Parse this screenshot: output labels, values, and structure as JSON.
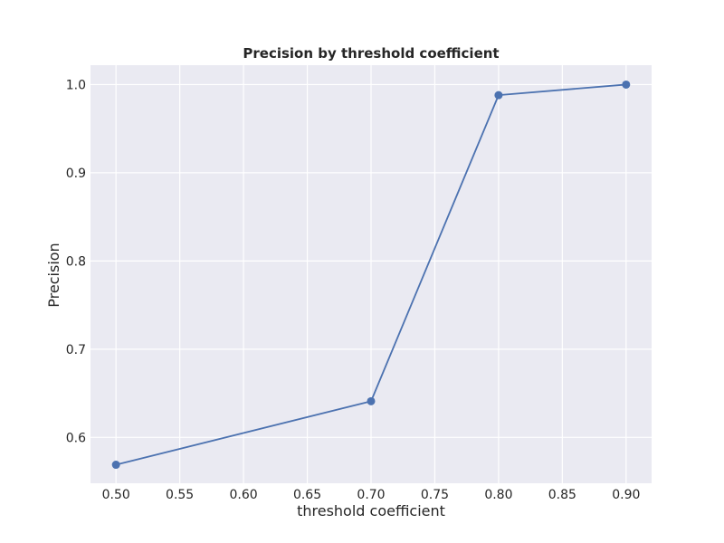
{
  "chart_data": {
    "type": "line",
    "title": "Precision by threshold coefficient",
    "xlabel": "threshold coefficient",
    "ylabel": "Precision",
    "x": [
      0.5,
      0.7,
      0.8,
      0.9
    ],
    "series": [
      {
        "values": [
          0.569,
          0.641,
          0.988,
          1.0
        ],
        "color": "#4c72b0",
        "marker": "circle"
      }
    ],
    "xlim": [
      0.48,
      0.92
    ],
    "ylim": [
      0.548,
      1.022
    ],
    "xticks": [
      0.5,
      0.55,
      0.6,
      0.65,
      0.7,
      0.75,
      0.8,
      0.85,
      0.9
    ],
    "xtick_labels": [
      "0.50",
      "0.55",
      "0.60",
      "0.65",
      "0.70",
      "0.75",
      "0.80",
      "0.85",
      "0.90"
    ],
    "yticks": [
      0.6,
      0.7,
      0.8,
      0.9,
      1.0
    ],
    "ytick_labels": [
      "0.6",
      "0.7",
      "0.8",
      "0.9",
      "1.0"
    ],
    "grid": true,
    "background_color": "#eaeaf2",
    "grid_color": "#ffffff"
  }
}
